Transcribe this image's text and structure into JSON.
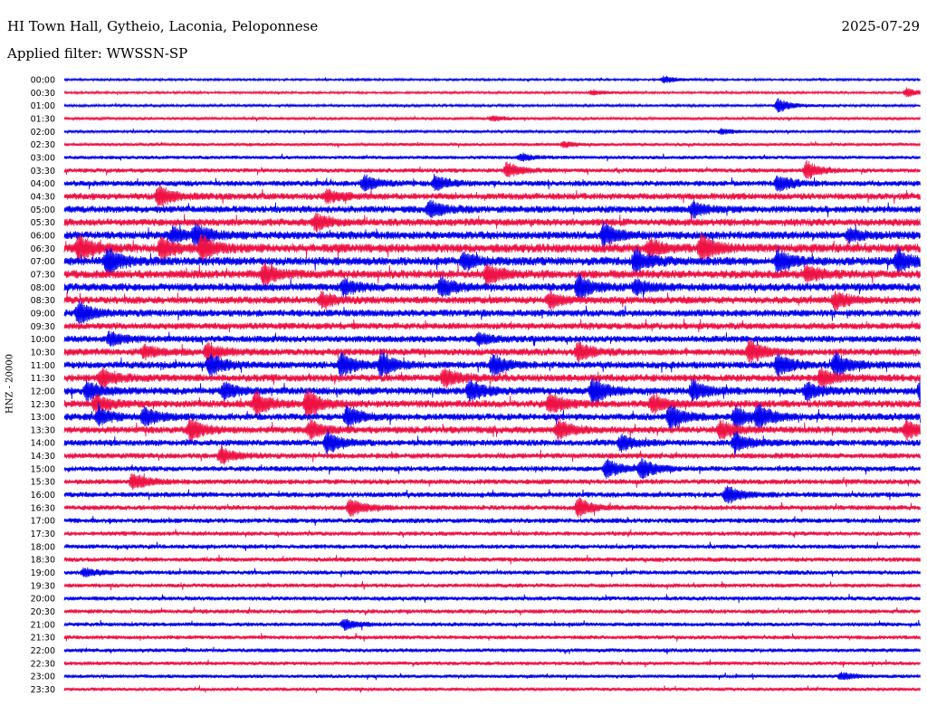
{
  "header": {
    "station": "HI Town Hall, Gytheio, Laconia, Peloponnese",
    "date": "2025-07-29",
    "filter": "Applied filter: WWSSN-SP"
  },
  "colors": {
    "blue": "#0000ee",
    "red": "#ee1144",
    "background": "#ffffff"
  },
  "chart_data": {
    "type": "line",
    "title": "",
    "ylabel": "HNZ - 20000",
    "row_minutes": 30,
    "row_labels": [
      "00:00",
      "00:30",
      "01:00",
      "01:30",
      "02:00",
      "02:30",
      "03:00",
      "03:30",
      "04:00",
      "04:30",
      "05:00",
      "05:30",
      "06:00",
      "06:30",
      "07:00",
      "07:30",
      "08:00",
      "08:30",
      "09:00",
      "09:30",
      "10:00",
      "10:30",
      "11:00",
      "11:30",
      "12:00",
      "12:30",
      "13:00",
      "13:30",
      "14:00",
      "14:30",
      "15:00",
      "15:30",
      "16:00",
      "16:30",
      "17:00",
      "17:30",
      "18:00",
      "18:30",
      "19:00",
      "19:30",
      "20:00",
      "20:30",
      "21:00",
      "21:30",
      "22:00",
      "22:30",
      "23:00",
      "23:30"
    ],
    "noise_levels": [
      1.2,
      1.3,
      1.4,
      1.6,
      1.5,
      1.8,
      2.0,
      2.5,
      3.2,
      3.8,
      4.0,
      4.2,
      4.6,
      5.0,
      4.8,
      4.8,
      4.5,
      4.2,
      4.0,
      3.8,
      3.8,
      4.0,
      4.0,
      4.2,
      4.2,
      4.2,
      4.0,
      4.0,
      3.6,
      3.2,
      3.0,
      3.0,
      3.0,
      2.8,
      2.8,
      2.5,
      2.5,
      2.6,
      2.5,
      2.4,
      2.4,
      2.4,
      2.3,
      2.3,
      2.2,
      2.2,
      2.0,
      2.0
    ],
    "events": [
      {
        "row": 0,
        "minute": 21.0,
        "amp": 4
      },
      {
        "row": 1,
        "minute": 18.5,
        "amp": 3
      },
      {
        "row": 1,
        "minute": 29.5,
        "amp": 5
      },
      {
        "row": 2,
        "minute": 25.0,
        "amp": 8
      },
      {
        "row": 3,
        "minute": 15.0,
        "amp": 3
      },
      {
        "row": 4,
        "minute": 23.0,
        "amp": 3
      },
      {
        "row": 5,
        "minute": 17.5,
        "amp": 3
      },
      {
        "row": 6,
        "minute": 16.0,
        "amp": 4
      },
      {
        "row": 7,
        "minute": 15.5,
        "amp": 9
      },
      {
        "row": 7,
        "minute": 26.0,
        "amp": 10
      },
      {
        "row": 8,
        "minute": 10.5,
        "amp": 9
      },
      {
        "row": 8,
        "minute": 13.0,
        "amp": 8
      },
      {
        "row": 8,
        "minute": 25.0,
        "amp": 10
      },
      {
        "row": 9,
        "minute": 3.3,
        "amp": 12
      },
      {
        "row": 9,
        "minute": 9.2,
        "amp": 7
      },
      {
        "row": 10,
        "minute": 12.8,
        "amp": 10
      },
      {
        "row": 10,
        "minute": 22.0,
        "amp": 8
      },
      {
        "row": 11,
        "minute": 8.8,
        "amp": 9
      },
      {
        "row": 12,
        "minute": 3.8,
        "amp": 8
      },
      {
        "row": 12,
        "minute": 4.6,
        "amp": 12
      },
      {
        "row": 12,
        "minute": 18.9,
        "amp": 13
      },
      {
        "row": 12,
        "minute": 27.5,
        "amp": 7
      },
      {
        "row": 13,
        "minute": 0.5,
        "amp": 14
      },
      {
        "row": 13,
        "minute": 3.4,
        "amp": 12
      },
      {
        "row": 13,
        "minute": 4.8,
        "amp": 14
      },
      {
        "row": 13,
        "minute": 20.5,
        "amp": 9
      },
      {
        "row": 13,
        "minute": 22.3,
        "amp": 15
      },
      {
        "row": 14,
        "minute": 1.5,
        "amp": 16
      },
      {
        "row": 14,
        "minute": 14.0,
        "amp": 9
      },
      {
        "row": 14,
        "minute": 20.0,
        "amp": 14
      },
      {
        "row": 14,
        "minute": 25.0,
        "amp": 13
      },
      {
        "row": 14,
        "minute": 29.2,
        "amp": 12
      },
      {
        "row": 15,
        "minute": 7.0,
        "amp": 12
      },
      {
        "row": 15,
        "minute": 14.8,
        "amp": 11
      },
      {
        "row": 15,
        "minute": 26.0,
        "amp": 9
      },
      {
        "row": 16,
        "minute": 9.8,
        "amp": 9
      },
      {
        "row": 16,
        "minute": 13.2,
        "amp": 11
      },
      {
        "row": 16,
        "minute": 18.0,
        "amp": 14
      },
      {
        "row": 16,
        "minute": 20.0,
        "amp": 8
      },
      {
        "row": 17,
        "minute": 9.0,
        "amp": 8
      },
      {
        "row": 17,
        "minute": 17.0,
        "amp": 9
      },
      {
        "row": 17,
        "minute": 27.0,
        "amp": 10
      },
      {
        "row": 18,
        "minute": 0.5,
        "amp": 13
      },
      {
        "row": 20,
        "minute": 1.6,
        "amp": 8
      },
      {
        "row": 20,
        "minute": 14.5,
        "amp": 6
      },
      {
        "row": 21,
        "minute": 2.8,
        "amp": 7
      },
      {
        "row": 21,
        "minute": 5.0,
        "amp": 10
      },
      {
        "row": 21,
        "minute": 18.0,
        "amp": 11
      },
      {
        "row": 21,
        "minute": 24.0,
        "amp": 13
      },
      {
        "row": 22,
        "minute": 5.1,
        "amp": 12
      },
      {
        "row": 22,
        "minute": 9.7,
        "amp": 14
      },
      {
        "row": 22,
        "minute": 11.1,
        "amp": 14
      },
      {
        "row": 22,
        "minute": 15.0,
        "amp": 12
      },
      {
        "row": 22,
        "minute": 25.0,
        "amp": 13
      },
      {
        "row": 22,
        "minute": 27.0,
        "amp": 14
      },
      {
        "row": 23,
        "minute": 1.3,
        "amp": 11
      },
      {
        "row": 23,
        "minute": 13.3,
        "amp": 11
      },
      {
        "row": 23,
        "minute": 26.5,
        "amp": 10
      },
      {
        "row": 24,
        "minute": 0.8,
        "amp": 10
      },
      {
        "row": 24,
        "minute": 5.6,
        "amp": 9
      },
      {
        "row": 24,
        "minute": 14.2,
        "amp": 12
      },
      {
        "row": 24,
        "minute": 18.5,
        "amp": 16
      },
      {
        "row": 24,
        "minute": 22.0,
        "amp": 12
      },
      {
        "row": 24,
        "minute": 26.0,
        "amp": 10
      },
      {
        "row": 24,
        "minute": 30.0,
        "amp": 15
      },
      {
        "row": 25,
        "minute": 1.1,
        "amp": 10
      },
      {
        "row": 25,
        "minute": 6.7,
        "amp": 14
      },
      {
        "row": 25,
        "minute": 8.5,
        "amp": 16
      },
      {
        "row": 25,
        "minute": 17.0,
        "amp": 12
      },
      {
        "row": 25,
        "minute": 20.6,
        "amp": 10
      },
      {
        "row": 26,
        "minute": 1.2,
        "amp": 9
      },
      {
        "row": 26,
        "minute": 2.8,
        "amp": 11
      },
      {
        "row": 26,
        "minute": 9.9,
        "amp": 12
      },
      {
        "row": 26,
        "minute": 21.2,
        "amp": 14
      },
      {
        "row": 26,
        "minute": 23.5,
        "amp": 13
      },
      {
        "row": 26,
        "minute": 24.3,
        "amp": 12
      },
      {
        "row": 27,
        "minute": 4.4,
        "amp": 12
      },
      {
        "row": 27,
        "minute": 8.6,
        "amp": 10
      },
      {
        "row": 27,
        "minute": 17.3,
        "amp": 11
      },
      {
        "row": 27,
        "minute": 23.0,
        "amp": 11
      },
      {
        "row": 27,
        "minute": 29.5,
        "amp": 10
      },
      {
        "row": 28,
        "minute": 9.2,
        "amp": 13
      },
      {
        "row": 28,
        "minute": 19.5,
        "amp": 9
      },
      {
        "row": 28,
        "minute": 23.5,
        "amp": 12
      },
      {
        "row": 29,
        "minute": 5.5,
        "amp": 9
      },
      {
        "row": 30,
        "minute": 19.0,
        "amp": 11
      },
      {
        "row": 30,
        "minute": 20.2,
        "amp": 12
      },
      {
        "row": 31,
        "minute": 2.4,
        "amp": 10
      },
      {
        "row": 32,
        "minute": 23.2,
        "amp": 11
      },
      {
        "row": 33,
        "minute": 10.0,
        "amp": 10
      },
      {
        "row": 33,
        "minute": 18.0,
        "amp": 11
      },
      {
        "row": 38,
        "minute": 0.7,
        "amp": 5
      },
      {
        "row": 42,
        "minute": 9.8,
        "amp": 6
      },
      {
        "row": 46,
        "minute": 27.2,
        "amp": 4
      }
    ]
  }
}
